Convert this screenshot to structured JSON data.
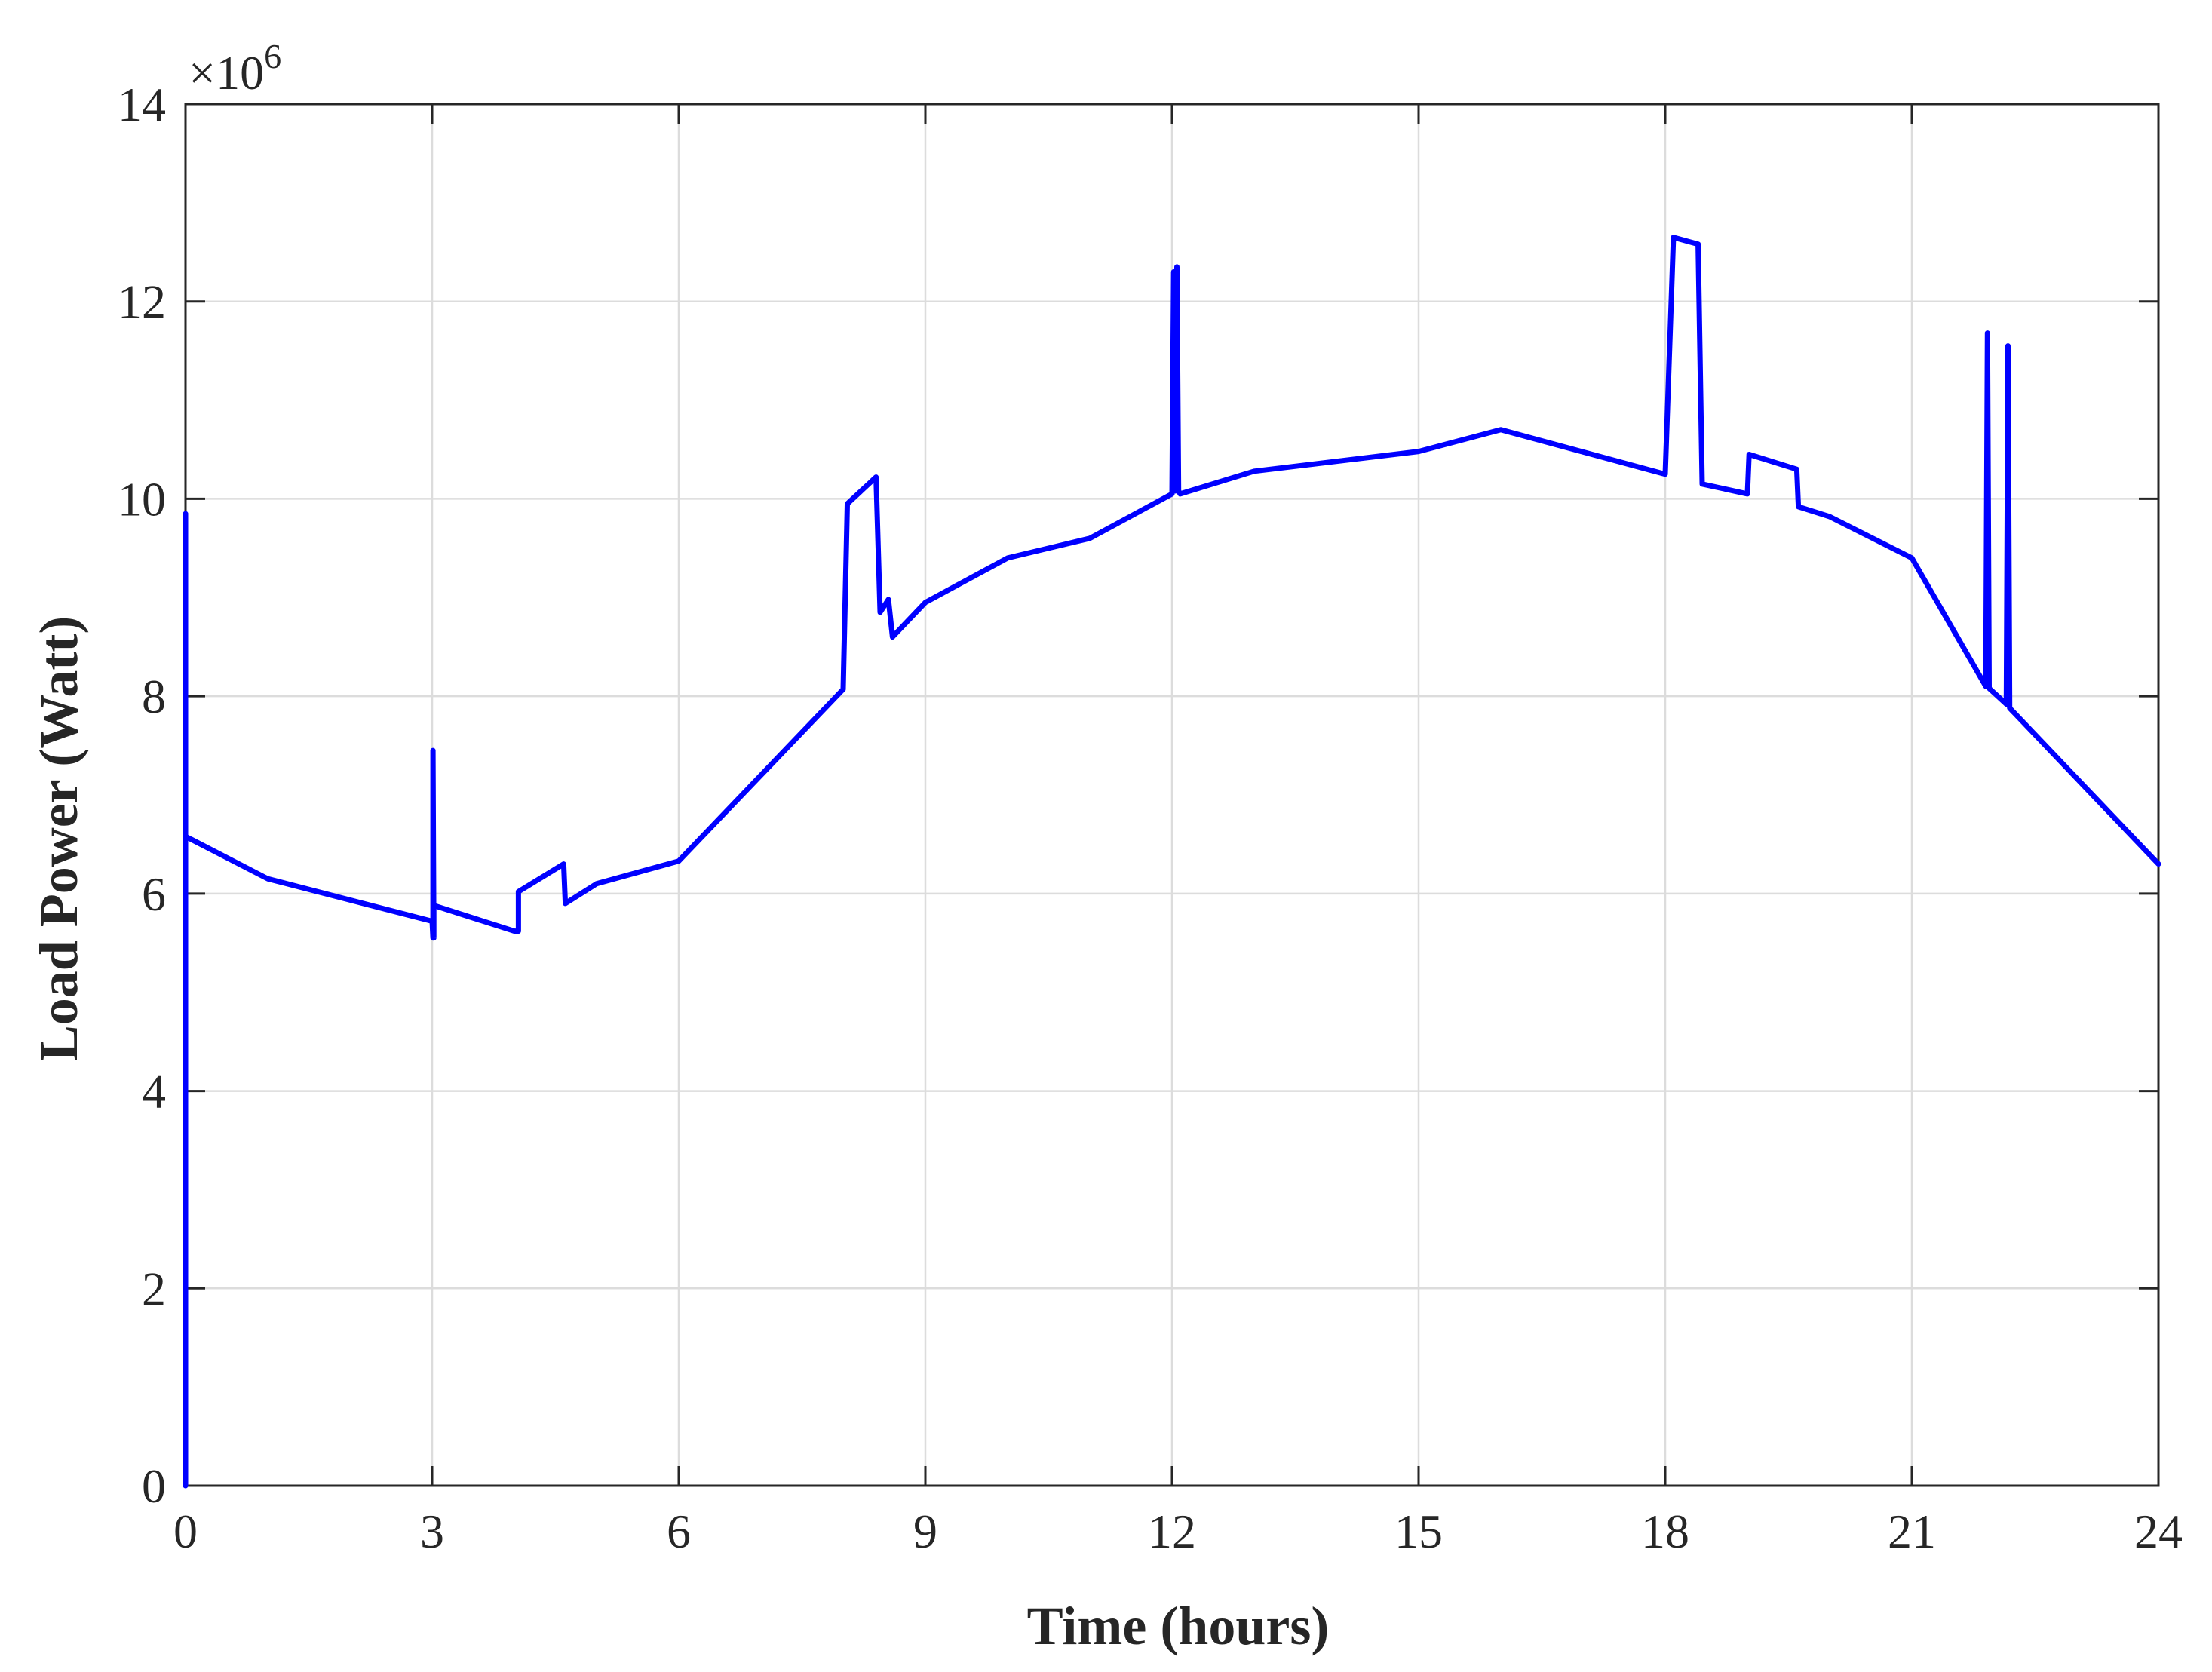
{
  "chart_data": {
    "type": "line",
    "title": "",
    "xlabel": "Time (hours)",
    "ylabel": "Load Power (Watt)",
    "y_exponent_label": "×10",
    "y_exponent_power": "6",
    "y_scale_multiplier": 1000000,
    "xlim": [
      0,
      24
    ],
    "ylim": [
      0,
      14
    ],
    "x_ticks": [
      0,
      3,
      6,
      9,
      12,
      15,
      18,
      21,
      24
    ],
    "y_ticks": [
      0,
      2,
      4,
      6,
      8,
      10,
      12,
      14
    ],
    "x_tick_labels": [
      "0",
      "3",
      "6",
      "9",
      "12",
      "15",
      "18",
      "21",
      "24"
    ],
    "y_tick_labels": [
      "0",
      "2",
      "4",
      "6",
      "8",
      "10",
      "12",
      "14"
    ],
    "grid": true,
    "legend": "none",
    "series": [
      {
        "color": "#0000ff",
        "x": [
          0,
          0,
          0,
          1,
          3,
          3.01,
          3.01,
          3.02,
          3.02,
          4,
          4.05,
          4.05,
          4.6,
          4.62,
          5,
          6,
          8,
          8.05,
          8.4,
          8.45,
          8.55,
          8.6,
          9,
          10,
          11,
          12,
          12.02,
          12.04,
          12.06,
          12.08,
          12.1,
          13,
          15,
          16,
          18,
          18.1,
          18.4,
          18.45,
          19,
          19.02,
          19.6,
          19.62,
          20,
          21,
          21.9,
          21.92,
          21.94,
          22.15,
          22.17,
          22.19,
          24
        ],
        "y": [
          0,
          9.85,
          6.58,
          6.15,
          5.72,
          5.55,
          7.45,
          5.55,
          5.88,
          5.62,
          5.62,
          6.02,
          6.3,
          5.9,
          6.1,
          6.33,
          8.07,
          9.95,
          10.22,
          8.85,
          8.98,
          8.6,
          8.95,
          9.4,
          9.6,
          10.05,
          12.3,
          10.08,
          12.35,
          10.08,
          10.05,
          10.28,
          10.48,
          10.7,
          10.25,
          12.65,
          12.58,
          10.15,
          10.05,
          10.45,
          10.3,
          9.92,
          9.82,
          9.4,
          8.1,
          11.68,
          8.08,
          7.92,
          11.55,
          7.88,
          6.3
        ]
      }
    ]
  }
}
